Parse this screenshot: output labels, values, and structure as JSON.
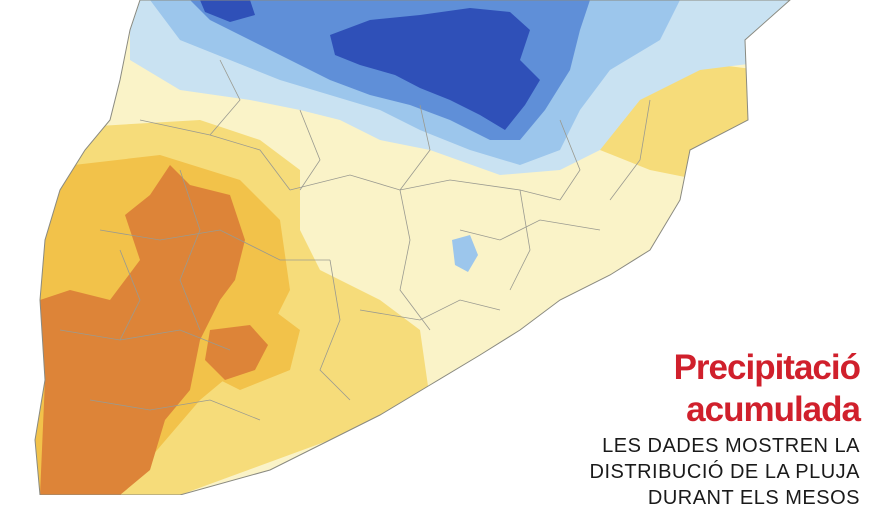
{
  "title_line1": "Precipitació",
  "title_line2": "acumulada",
  "subtitle_line1": "LES DADES MOSTREN LA",
  "subtitle_line2": "DISTRIBUCIÓ DE LA PLUJA",
  "subtitle_line3": "DURANT ELS MESOS",
  "colors": {
    "very_wet": "#2f50b8",
    "wet": "#5f8fd8",
    "moderate": "#9cc6ec",
    "light": "#c9e2f2",
    "neutral": "#faf3c8",
    "dry": "#f6dc7a",
    "drier": "#f2c24a",
    "very_dry": "#dd8438",
    "title_red": "#d0202c"
  }
}
